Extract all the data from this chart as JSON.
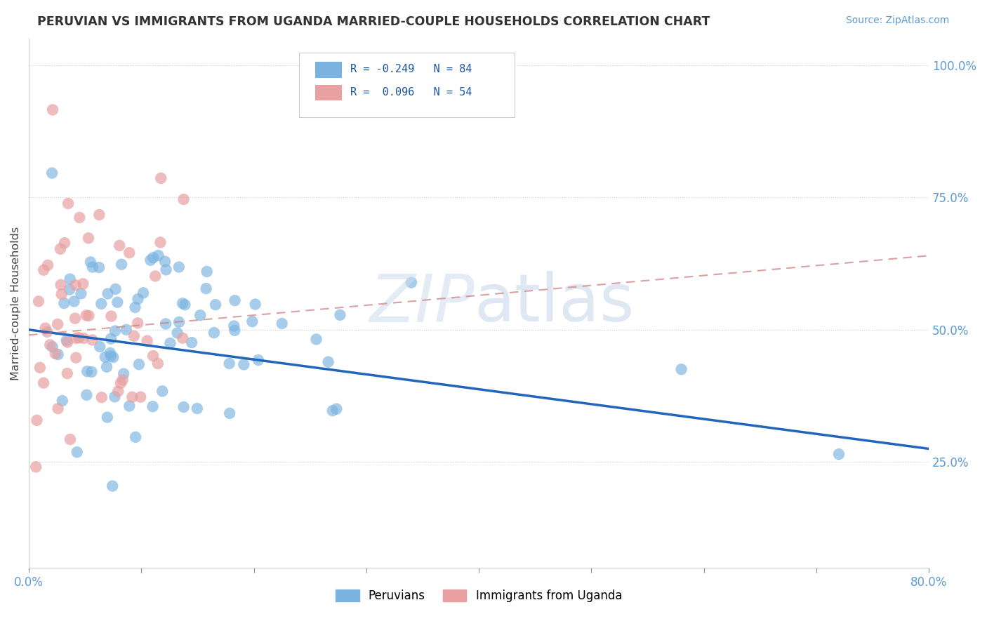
{
  "title": "PERUVIAN VS IMMIGRANTS FROM UGANDA MARRIED-COUPLE HOUSEHOLDS CORRELATION CHART",
  "source_text": "Source: ZipAtlas.com",
  "ylabel": "Married-couple Households",
  "ytick_labels": [
    "25.0%",
    "50.0%",
    "75.0%",
    "100.0%"
  ],
  "ytick_values": [
    0.25,
    0.5,
    0.75,
    1.0
  ],
  "xlim": [
    0.0,
    0.8
  ],
  "ylim": [
    0.05,
    1.05
  ],
  "blue_R": -0.249,
  "blue_N": 84,
  "pink_R": 0.096,
  "pink_N": 54,
  "blue_color": "#7ab3e0",
  "pink_color": "#e8a0a0",
  "blue_line_color": "#2266bb",
  "pink_line_color": "#d08080",
  "legend_label_blue": "Peruvians",
  "legend_label_pink": "Immigrants from Uganda",
  "blue_line_x": [
    0.0,
    0.8
  ],
  "blue_line_y": [
    0.5,
    0.275
  ],
  "pink_line_x": [
    0.0,
    0.8
  ],
  "pink_line_y": [
    0.49,
    0.64
  ]
}
